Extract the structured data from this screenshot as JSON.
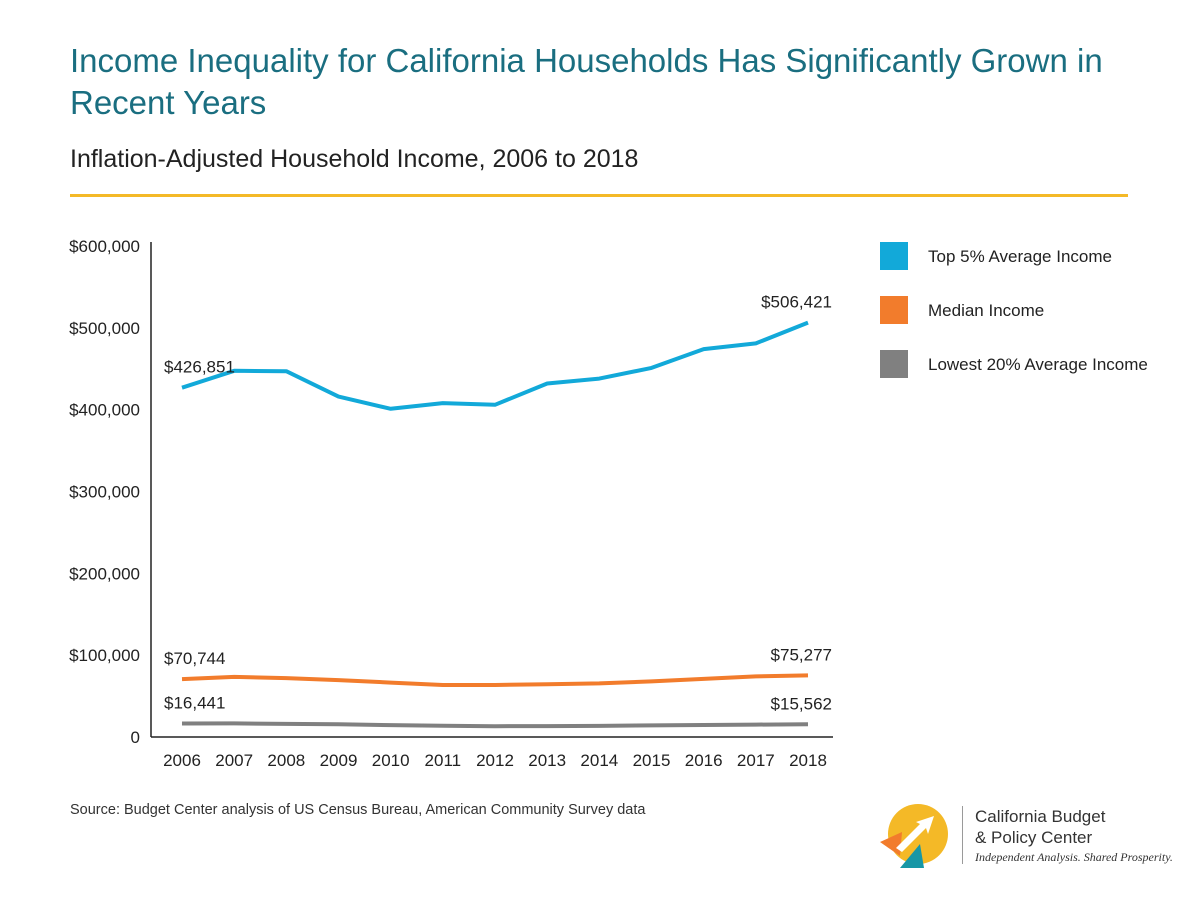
{
  "header": {
    "title": "Income Inequality for California Households Has Significantly Grown in Recent Years",
    "subtitle": "Inflation-Adjusted Household Income, 2006 to 2018"
  },
  "chart_data": {
    "type": "line",
    "title": "Income Inequality for California Households Has Significantly Grown in Recent Years",
    "subtitle": "Inflation-Adjusted Household Income, 2006 to 2018",
    "xlabel": "",
    "ylabel": "",
    "x": [
      2006,
      2007,
      2008,
      2009,
      2010,
      2011,
      2012,
      2013,
      2014,
      2015,
      2016,
      2017,
      2018
    ],
    "x_tick_labels": [
      "2006",
      "2007",
      "2008",
      "2009",
      "2010",
      "2011",
      "2012",
      "2013",
      "2014",
      "2015",
      "2016",
      "2017",
      "2018"
    ],
    "ylim": [
      0,
      600000
    ],
    "y_ticks": [
      0,
      100000,
      200000,
      300000,
      400000,
      500000,
      600000
    ],
    "y_tick_labels": [
      "0",
      "$100,000",
      "$200,000",
      "$300,000",
      "$400,000",
      "$500,000",
      "$600,000"
    ],
    "grid": false,
    "legend_position": "right",
    "series": [
      {
        "name": "Top 5% Average Income",
        "color": "#12a9d9",
        "values": [
          426851,
          447500,
          447000,
          416000,
          401000,
          408000,
          406000,
          432000,
          438000,
          451000,
          474000,
          481000,
          506421
        ],
        "labels": [
          {
            "index": 0,
            "text": "$426,851"
          },
          {
            "index": 12,
            "text": "$506,421"
          }
        ]
      },
      {
        "name": "Median Income",
        "color": "#f27c2c",
        "values": [
          70744,
          73500,
          72000,
          69500,
          66500,
          63500,
          63500,
          64500,
          65500,
          68000,
          71000,
          74000,
          75277
        ],
        "labels": [
          {
            "index": 0,
            "text": "$70,744"
          },
          {
            "index": 12,
            "text": "$75,277"
          }
        ]
      },
      {
        "name": "Lowest 20% Average Income",
        "color": "#808080",
        "values": [
          16441,
          16600,
          16000,
          15500,
          14500,
          13700,
          13200,
          13300,
          13600,
          14200,
          14700,
          15200,
          15562
        ],
        "labels": [
          {
            "index": 0,
            "text": "$16,441"
          },
          {
            "index": 12,
            "text": "$15,562"
          }
        ]
      }
    ]
  },
  "legend": {
    "items": [
      {
        "label": "Top 5% Average Income",
        "color": "#12a9d9"
      },
      {
        "label": "Median Income",
        "color": "#f27c2c"
      },
      {
        "label": "Lowest 20% Average Income",
        "color": "#808080"
      }
    ]
  },
  "footer": {
    "source": "Source: Budget Center analysis of US Census Bureau, American Community Survey data"
  },
  "logo": {
    "name_line1": "California Budget",
    "name_line2": "& Policy Center",
    "tagline": "Independent Analysis. Shared Prosperity."
  },
  "colors": {
    "title": "#1a6e80",
    "rule": "#f4b927",
    "axis": "#222222"
  }
}
